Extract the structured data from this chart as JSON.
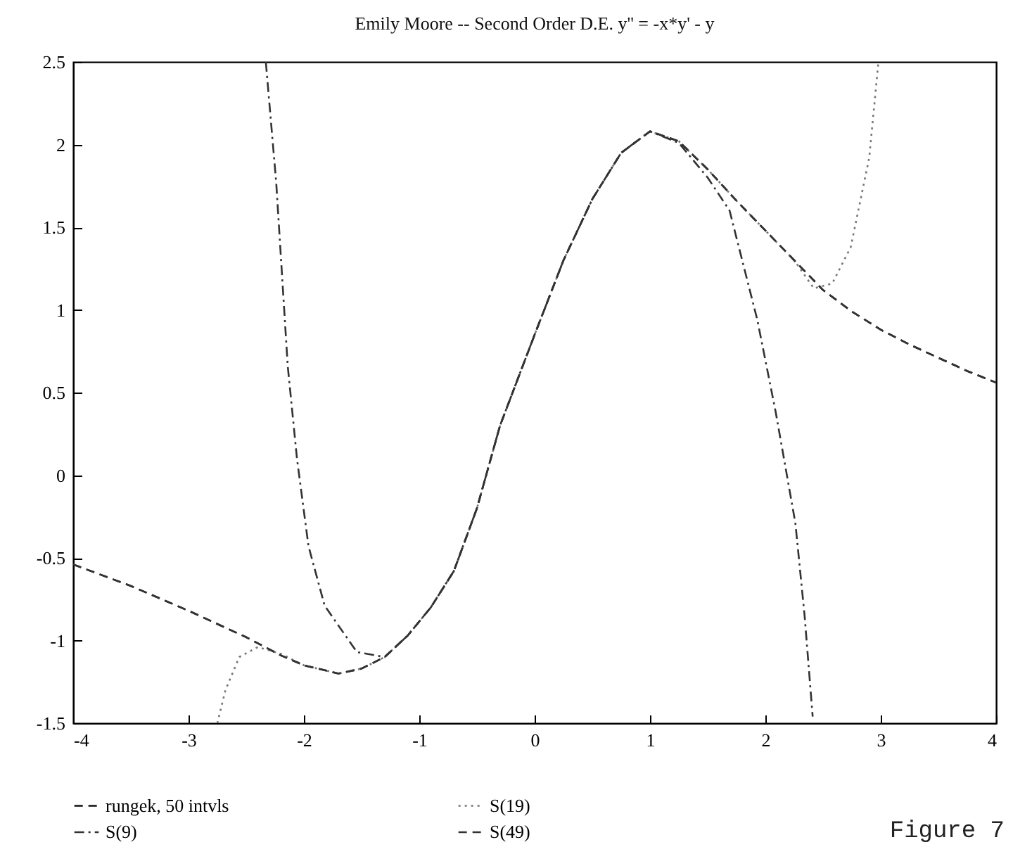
{
  "chart_data": {
    "type": "line",
    "title": "Emily Moore -- Second Order D.E.   y'' = -x*y' - y",
    "annotations": [
      "Figure 7"
    ],
    "xlim": [
      -4,
      4
    ],
    "xticks": [
      -4,
      -3,
      -2,
      -1,
      0,
      1,
      2,
      3,
      4
    ],
    "ylim": [
      -1.5,
      2.5
    ],
    "yticks": [
      -1.5,
      -1,
      -0.5,
      0,
      0.5,
      1,
      1.5,
      2,
      2.5
    ],
    "grid": false,
    "legend": "bottom",
    "marker": "none",
    "series": [
      {
        "name": "rungek, 50 intvls",
        "color": "#111111",
        "line_style": "dashed",
        "x": [
          -4,
          -3.5,
          -3,
          -2.5,
          -2.2,
          -2,
          -1.7,
          -1.5,
          -1.3,
          -1.1,
          -0.9,
          -0.7,
          -0.5,
          -0.3,
          0,
          0.25,
          0.5,
          0.75,
          1,
          1.25,
          1.5,
          1.75,
          2,
          2.25,
          2.5,
          2.75,
          3,
          3.25,
          3.5,
          3.75,
          4
        ],
        "values": [
          -0.54,
          -0.67,
          -0.82,
          -0.98,
          -1.09,
          -1.15,
          -1.2,
          -1.17,
          -1.1,
          -0.97,
          -0.8,
          -0.58,
          -0.2,
          0.3,
          0.85,
          1.3,
          1.67,
          1.95,
          2.08,
          2.02,
          1.85,
          1.66,
          1.48,
          1.3,
          1.12,
          0.99,
          0.88,
          0.79,
          0.71,
          0.63,
          0.56
        ]
      },
      {
        "name": "S(19)",
        "color": "#777777",
        "line_style": "dotted",
        "x": [
          -2.75,
          -2.68,
          -2.56,
          -2.4,
          -2.2,
          -2,
          -1.7,
          -1.5,
          -1.3,
          -1.1,
          -0.9,
          -0.7,
          -0.5,
          -0.3,
          0,
          0.25,
          0.5,
          0.75,
          1,
          1.25,
          1.5,
          1.75,
          2,
          2.25,
          2.42,
          2.58,
          2.74,
          2.9,
          2.98
        ],
        "values": [
          -1.5,
          -1.3,
          -1.1,
          -1.04,
          -1.08,
          -1.15,
          -1.2,
          -1.17,
          -1.1,
          -0.97,
          -0.8,
          -0.58,
          -0.2,
          0.3,
          0.85,
          1.3,
          1.67,
          1.95,
          2.08,
          2.02,
          1.85,
          1.66,
          1.48,
          1.3,
          1.13,
          1.16,
          1.38,
          1.92,
          2.5
        ]
      },
      {
        "name": "S(9)",
        "color": "#333333",
        "line_style": "dashdot",
        "x": [
          -2.33,
          -2.24,
          -2.14,
          -2.06,
          -1.96,
          -1.82,
          -1.54,
          -1.3,
          -1.1,
          -0.9,
          -0.7,
          -0.5,
          -0.3,
          0,
          0.25,
          0.5,
          0.75,
          1,
          1.25,
          1.5,
          1.69,
          1.93,
          2.09,
          2.26,
          2.34,
          2.41
        ],
        "values": [
          2.5,
          1.77,
          0.66,
          0.1,
          -0.43,
          -0.79,
          -1.07,
          -1.1,
          -0.97,
          -0.8,
          -0.58,
          -0.2,
          0.3,
          0.85,
          1.3,
          1.67,
          1.95,
          2.08,
          2.01,
          1.8,
          1.6,
          0.94,
          0.38,
          -0.29,
          -0.85,
          -1.46
        ]
      },
      {
        "name": "S(49)",
        "color": "#333333",
        "line_style": "dashed",
        "x": [
          -4,
          -3.5,
          -3,
          -2.5,
          -2.2,
          -2,
          -1.7,
          -1.5,
          -1.3,
          -1.1,
          -0.9,
          -0.7,
          -0.5,
          -0.3,
          0,
          0.25,
          0.5,
          0.75,
          1,
          1.25,
          1.5,
          1.75,
          2,
          2.25,
          2.5,
          2.75,
          3,
          3.25,
          3.5,
          3.75,
          4
        ],
        "values": [
          -0.54,
          -0.67,
          -0.82,
          -0.98,
          -1.09,
          -1.15,
          -1.2,
          -1.17,
          -1.1,
          -0.97,
          -0.8,
          -0.58,
          -0.2,
          0.3,
          0.85,
          1.3,
          1.67,
          1.95,
          2.08,
          2.02,
          1.85,
          1.66,
          1.48,
          1.3,
          1.12,
          0.99,
          0.88,
          0.79,
          0.71,
          0.63,
          0.56
        ]
      }
    ]
  }
}
